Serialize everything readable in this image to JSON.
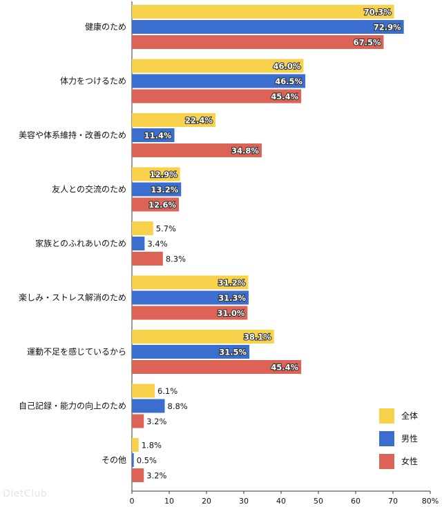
{
  "chart_data": {
    "type": "bar",
    "orientation": "horizontal",
    "categories": [
      "健康のため",
      "体力をつけるため",
      "美容や体系維持・改善のため",
      "友人との交流のため",
      "家族とのふれあいのため",
      "楽しみ・ストレス解消のため",
      "運動不足を感じているから",
      "自己記録・能力の向上のため",
      "その他"
    ],
    "series": [
      {
        "name": "全体",
        "color": "#f8d24a",
        "values": [
          70.3,
          46.0,
          22.4,
          12.9,
          5.7,
          31.2,
          38.1,
          6.1,
          1.8
        ],
        "labels": [
          "70.3%",
          "46.0%",
          "22.4%",
          "12.9%",
          "5.7%",
          "31.2%",
          "38.1%",
          "6.1%",
          "1.8%"
        ]
      },
      {
        "name": "男性",
        "color": "#3a6fd0",
        "values": [
          72.9,
          46.5,
          11.4,
          13.2,
          3.4,
          31.3,
          31.5,
          8.8,
          0.5
        ],
        "labels": [
          "72.9%",
          "46.5%",
          "11.4%",
          "13.2%",
          "3.4%",
          "31.3%",
          "31.5%",
          "8.8%",
          "0.5%"
        ]
      },
      {
        "name": "女性",
        "color": "#dc6356",
        "values": [
          67.5,
          45.4,
          34.8,
          12.6,
          8.3,
          31.0,
          45.4,
          3.2,
          3.2
        ],
        "labels": [
          "67.5%",
          "45.4%",
          "34.8%",
          "12.6%",
          "8.3%",
          "31.0%",
          "45.4%",
          "3.2%",
          "3.2%"
        ]
      }
    ],
    "xlim": [
      0,
      80
    ],
    "x_ticks": [
      "0",
      "10",
      "20",
      "30",
      "40",
      "50",
      "60",
      "70",
      "80%"
    ],
    "grid": false,
    "legend_position": "bottom-right"
  },
  "watermark": "DietClub"
}
